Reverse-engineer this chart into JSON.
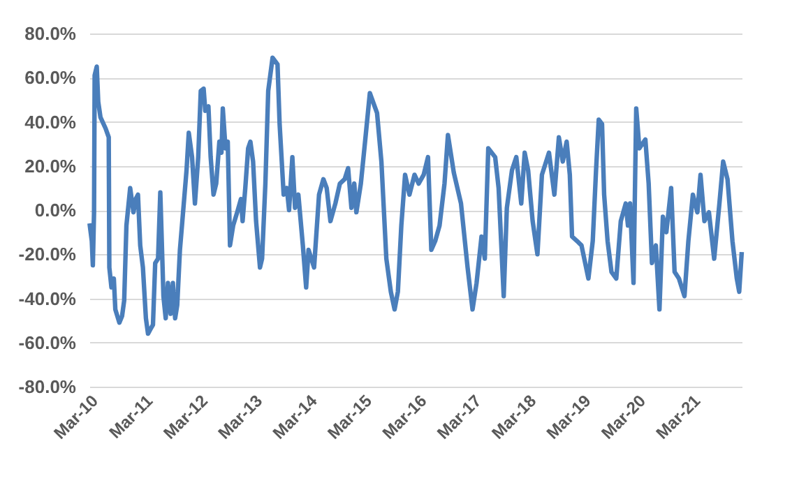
{
  "chart_data": {
    "type": "line",
    "x": [
      "2010-03-02",
      "2010-03-17",
      "2010-03-24",
      "2010-04-01",
      "2010-04-05",
      "2010-04-19",
      "2010-04-29",
      "2010-05-14",
      "2010-06-17",
      "2010-07-08",
      "2010-07-12",
      "2010-07-26",
      "2010-08-11",
      "2010-08-21",
      "2010-09-17",
      "2010-10-05",
      "2010-10-19",
      "2010-11-03",
      "2010-11-28",
      "2010-12-20",
      "2011-01-04",
      "2011-01-19",
      "2011-02-03",
      "2011-02-21",
      "2011-03-13",
      "2011-03-27",
      "2011-04-12",
      "2011-04-29",
      "2011-05-14",
      "2011-06-02",
      "2011-06-17",
      "2011-07-08",
      "2011-07-23",
      "2011-08-07",
      "2011-08-25",
      "2011-09-09",
      "2011-09-24",
      "2011-10-08",
      "2011-10-26",
      "2011-11-11",
      "2011-12-09",
      "2011-12-24",
      "2012-01-15",
      "2012-02-03",
      "2012-02-25",
      "2012-03-13",
      "2012-04-01",
      "2012-04-12",
      "2012-05-03",
      "2012-05-18",
      "2012-06-06",
      "2012-06-24",
      "2012-07-15",
      "2012-07-29",
      "2012-08-07",
      "2012-08-25",
      "2012-09-09",
      "2012-09-24",
      "2012-10-15",
      "2012-11-11",
      "2012-12-06",
      "2012-12-17",
      "2013-01-04",
      "2013-01-23",
      "2013-02-07",
      "2013-02-25",
      "2013-03-17",
      "2013-04-12",
      "2013-04-26",
      "2013-05-18",
      "2013-06-06",
      "2013-07-05",
      "2013-08-07",
      "2013-08-21",
      "2013-09-17",
      "2013-10-08",
      "2013-10-23",
      "2013-11-14",
      "2013-12-02",
      "2013-12-24",
      "2014-01-23",
      "2014-02-14",
      "2014-03-02",
      "2014-04-08",
      "2014-05-11",
      "2014-06-09",
      "2014-07-01",
      "2014-07-26",
      "2014-08-28",
      "2014-09-27",
      "2014-10-29",
      "2014-11-21",
      "2014-12-13",
      "2015-01-01",
      "2015-01-15",
      "2015-02-14",
      "2015-03-17",
      "2015-04-15",
      "2015-06-02",
      "2015-07-01",
      "2015-08-03",
      "2015-09-02",
      "2015-09-27",
      "2015-10-19",
      "2015-11-11",
      "2015-12-06",
      "2016-01-04",
      "2016-02-07",
      "2016-03-06",
      "2016-04-08",
      "2016-05-07",
      "2016-05-29",
      "2016-06-24",
      "2016-07-23",
      "2016-08-25",
      "2016-09-17",
      "2016-10-26",
      "2016-12-13",
      "2017-01-26",
      "2017-02-28",
      "2017-03-27",
      "2017-04-29",
      "2017-05-21",
      "2017-06-13",
      "2017-07-29",
      "2017-08-21",
      "2017-09-24",
      "2017-10-15",
      "2017-11-18",
      "2017-12-17",
      "2018-01-19",
      "2018-02-11",
      "2018-03-06",
      "2018-04-05",
      "2018-05-07",
      "2018-06-06",
      "2018-07-23",
      "2018-08-28",
      "2018-09-27",
      "2018-10-23",
      "2018-11-18",
      "2018-12-09",
      "2018-12-24",
      "2019-01-26",
      "2019-02-25",
      "2019-04-12",
      "2019-05-11",
      "2019-06-02",
      "2019-06-20",
      "2019-07-12",
      "2019-07-26",
      "2019-08-18",
      "2019-09-13",
      "2019-10-15",
      "2019-11-14",
      "2019-12-17",
      "2020-01-01",
      "2020-01-15",
      "2020-02-07",
      "2020-02-25",
      "2020-03-17",
      "2020-04-26",
      "2020-05-18",
      "2020-06-09",
      "2020-07-05",
      "2020-07-29",
      "2020-08-21",
      "2020-09-13",
      "2020-10-15",
      "2020-11-07",
      "2020-12-06",
      "2021-01-12",
      "2021-02-07",
      "2021-03-09",
      "2021-04-08",
      "2021-04-29",
      "2021-05-25",
      "2021-06-24",
      "2021-07-29",
      "2021-09-02",
      "2021-09-27",
      "2021-10-26",
      "2021-11-28",
      "2021-12-27",
      "2022-01-12",
      "2022-01-29"
    ],
    "series": [
      {
        "color": "#4a7ebb",
        "values": [
          -6,
          -14,
          -25,
          -1,
          61,
          65,
          49,
          42,
          37,
          33,
          -26,
          -35,
          -31,
          -45,
          -51,
          -48,
          -41,
          -7,
          10,
          -1,
          5,
          7,
          -16,
          -26,
          -49,
          -56,
          -54,
          -52,
          -24,
          -22,
          8,
          -39,
          -49,
          -33,
          -47,
          -33,
          -49,
          -43,
          -18,
          -5,
          18,
          35,
          24,
          3,
          24,
          54,
          55,
          45,
          47,
          24,
          7,
          12,
          31,
          26,
          46,
          28,
          31,
          -16,
          -7,
          -1,
          5,
          -5,
          10,
          28,
          31,
          22,
          -5,
          -26,
          -22,
          12,
          54,
          69,
          66,
          39,
          7,
          10,
          0,
          24,
          1,
          7,
          -16,
          -35,
          -18,
          -26,
          7,
          14,
          10,
          -5,
          3,
          12,
          14,
          19,
          1,
          12,
          -1,
          12,
          33,
          53,
          44,
          22,
          -22,
          -37,
          -45,
          -37,
          -7,
          16,
          7,
          16,
          12,
          16,
          24,
          -18,
          -14,
          -7,
          12,
          34,
          17,
          3,
          -26,
          -45,
          -33,
          -12,
          -22,
          28,
          24,
          10,
          -39,
          1,
          18,
          24,
          3,
          26,
          18,
          -5,
          -20,
          16,
          26,
          7,
          33,
          22,
          31,
          16,
          -12,
          -14,
          -16,
          -31,
          -14,
          18,
          41,
          39,
          7,
          -14,
          -28,
          -31,
          -5,
          3,
          -7,
          3,
          -33,
          46,
          28,
          32,
          12,
          -24,
          -16,
          -45,
          -3,
          -10,
          10,
          -28,
          -31,
          -39,
          -14,
          7,
          -1,
          16,
          -5,
          -1,
          -22,
          3,
          22,
          14,
          -14,
          -31,
          -37,
          -19
        ]
      }
    ],
    "xlim": [
      "2010-03-01",
      "2022-01-29"
    ],
    "xticks": [
      {
        "value": "2010-03-01",
        "label": "Mar-10"
      },
      {
        "value": "2011-03-01",
        "label": "Mar-11"
      },
      {
        "value": "2012-03-01",
        "label": "Mar-12"
      },
      {
        "value": "2013-03-01",
        "label": "Mar-13"
      },
      {
        "value": "2014-03-01",
        "label": "Mar-14"
      },
      {
        "value": "2015-03-01",
        "label": "Mar-15"
      },
      {
        "value": "2016-03-01",
        "label": "Mar-16"
      },
      {
        "value": "2017-03-01",
        "label": "Mar-17"
      },
      {
        "value": "2018-03-01",
        "label": "Mar-18"
      },
      {
        "value": "2019-03-01",
        "label": "Mar-19"
      },
      {
        "value": "2020-03-01",
        "label": "Mar-20"
      },
      {
        "value": "2021-03-01",
        "label": "Mar-21"
      }
    ],
    "ylim": [
      -80,
      80
    ],
    "yticks": [
      {
        "value": -80,
        "label": "-80.0%"
      },
      {
        "value": -60,
        "label": "-60.0%"
      },
      {
        "value": -40,
        "label": "-40.0%"
      },
      {
        "value": -20,
        "label": "-20.0%"
      },
      {
        "value": 0,
        "label": "0.0%"
      },
      {
        "value": 20,
        "label": "20.0%"
      },
      {
        "value": 40,
        "label": "40.0%"
      },
      {
        "value": 60,
        "label": "60.0%"
      },
      {
        "value": 80,
        "label": "80.0%"
      }
    ],
    "grid": "y"
  }
}
